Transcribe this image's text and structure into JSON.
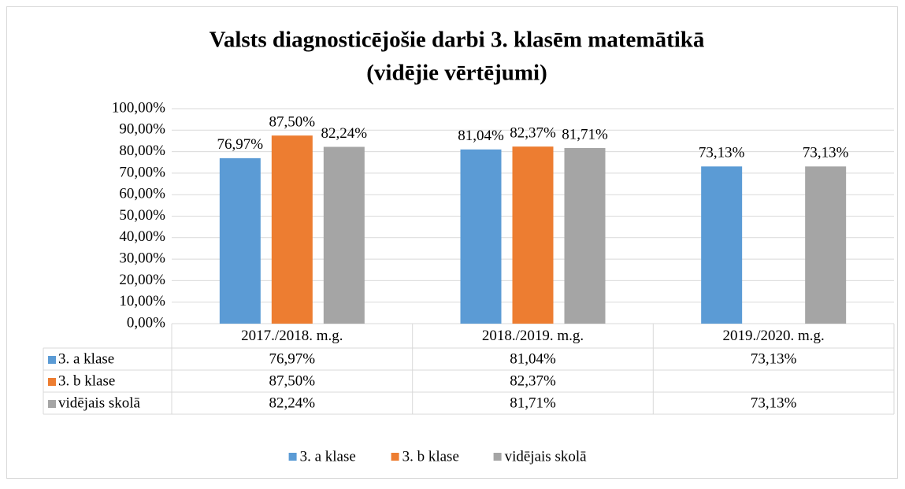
{
  "chart_data": {
    "type": "bar",
    "title": [
      "Valsts diagnosticējošie darbi 3. klasēm matemātikā",
      "(vidējie vērtējumi)"
    ],
    "categories": [
      "2017./2018. m.g.",
      "2018./2019. m.g.",
      "2019./2020. m.g."
    ],
    "series": [
      {
        "name": "3. a klase",
        "color": "#5b9bd5",
        "values": [
          76.97,
          81.04,
          73.13
        ],
        "value_labels": [
          "76,97%",
          "81,04%",
          "73,13%"
        ]
      },
      {
        "name": "3. b klase",
        "color": "#ed7d31",
        "values": [
          87.5,
          82.37,
          null
        ],
        "value_labels": [
          "87,50%",
          "82,37%",
          null
        ]
      },
      {
        "name": "vidējais skolā",
        "color": "#a5a5a5",
        "values": [
          82.24,
          81.71,
          73.13
        ],
        "value_labels": [
          "82,24%",
          "81,71%",
          "73,13%"
        ]
      }
    ],
    "ylim": [
      0,
      100
    ],
    "yticks": [
      {
        "value": 0,
        "label": "0,00%"
      },
      {
        "value": 10,
        "label": "10,00%"
      },
      {
        "value": 20,
        "label": "20,00%"
      },
      {
        "value": 30,
        "label": "30,00%"
      },
      {
        "value": 40,
        "label": "40,00%"
      },
      {
        "value": 50,
        "label": "50,00%"
      },
      {
        "value": 60,
        "label": "60,00%"
      },
      {
        "value": 70,
        "label": "70,00%"
      },
      {
        "value": 80,
        "label": "80,00%"
      },
      {
        "value": 90,
        "label": "90,00%"
      },
      {
        "value": 100,
        "label": "100,00%"
      }
    ],
    "grid": true,
    "legend": "bottom",
    "data_table": true
  }
}
